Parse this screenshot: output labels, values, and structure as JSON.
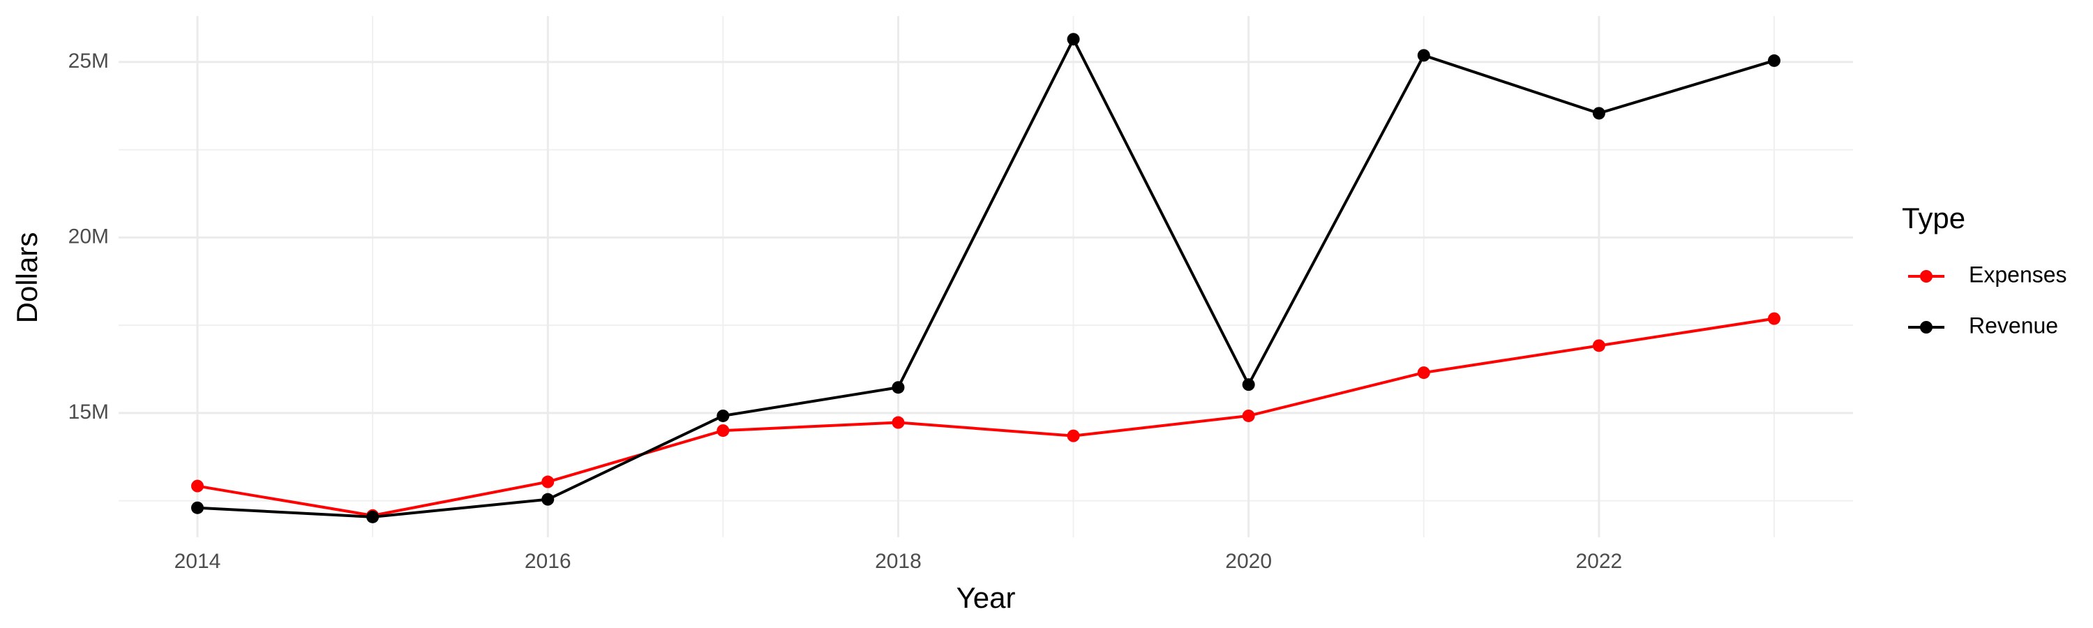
{
  "chart_data": {
    "type": "line",
    "x_label": "Year",
    "y_label": "Dollars",
    "legend_title": "Type",
    "x": [
      2014,
      2015,
      2016,
      2017,
      2018,
      2019,
      2020,
      2021,
      2022,
      2023
    ],
    "series": [
      {
        "name": "Expenses",
        "color": "#ff0000",
        "values": [
          12920000,
          12080000,
          13040000,
          14500000,
          14730000,
          14350000,
          14920000,
          16150000,
          16920000,
          17690000
        ]
      },
      {
        "name": "Revenue",
        "color": "#000000",
        "values": [
          12300000,
          12040000,
          12540000,
          14920000,
          15730000,
          25650000,
          15810000,
          25190000,
          23540000,
          25040000
        ]
      }
    ],
    "xlim": [
      2013.55,
      2023.45
    ],
    "xticks": [
      2014,
      2016,
      2018,
      2020,
      2022
    ],
    "ylim": [
      11460000,
      26310000
    ],
    "yticks": [
      {
        "value": 15000000,
        "label": "15M"
      },
      {
        "value": 20000000,
        "label": "20M"
      },
      {
        "value": 25000000,
        "label": "25M"
      }
    ],
    "grid": true,
    "legend": "right"
  }
}
